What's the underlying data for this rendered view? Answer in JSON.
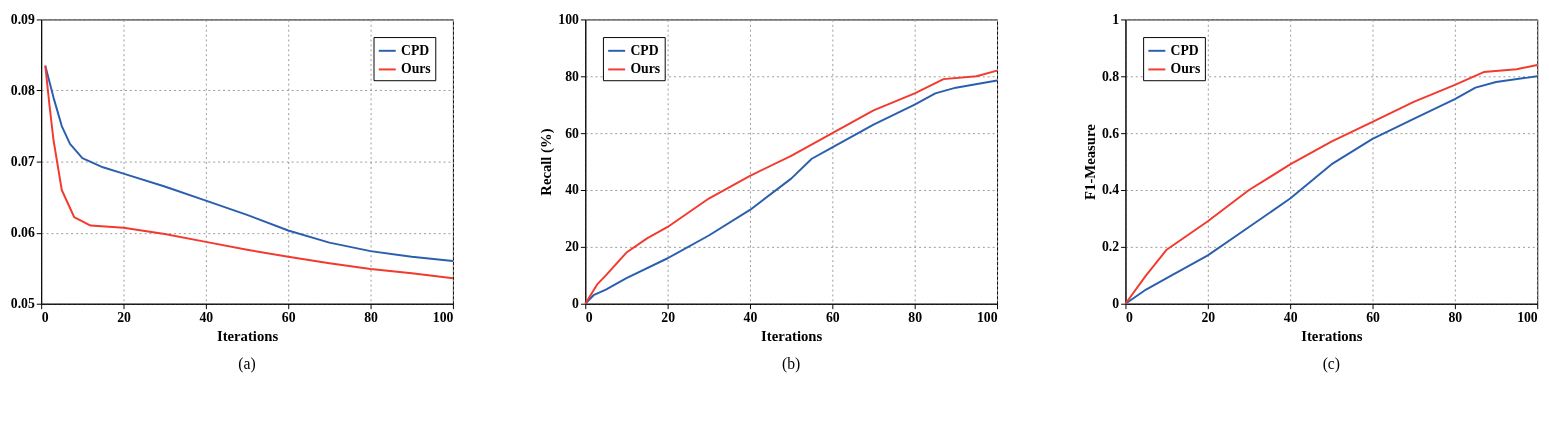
{
  "chart_data": [
    {
      "type": "line",
      "xlabel": "Iterations",
      "xlim": [
        0,
        100
      ],
      "xticks": [
        0,
        20,
        40,
        60,
        80,
        100
      ],
      "ylim": [
        0.05,
        0.09
      ],
      "yticks": [
        0.05,
        0.06,
        0.07,
        0.08,
        0.09
      ],
      "grid": true,
      "legend": "top right",
      "line_style": "solid",
      "annotations": [
        "(a)"
      ],
      "series": [
        {
          "name": "CPD",
          "color": "#2b5fae",
          "x": [
            1,
            3,
            5,
            7,
            10,
            15,
            20,
            30,
            40,
            50,
            60,
            70,
            80,
            90,
            100
          ],
          "values": [
            0.0835,
            0.079,
            0.075,
            0.0725,
            0.0705,
            0.0692,
            0.0683,
            0.0665,
            0.0645,
            0.0625,
            0.0603,
            0.0586,
            0.0574,
            0.0566,
            0.056
          ]
        },
        {
          "name": "Ours",
          "color": "#f23a2e",
          "x": [
            1,
            2,
            3,
            5,
            8,
            12,
            20,
            30,
            40,
            50,
            60,
            70,
            80,
            90,
            100
          ],
          "values": [
            0.0835,
            0.078,
            0.073,
            0.066,
            0.0622,
            0.061,
            0.0607,
            0.0598,
            0.0587,
            0.0576,
            0.0566,
            0.0557,
            0.0549,
            0.0543,
            0.0536
          ]
        }
      ]
    },
    {
      "type": "line",
      "xlabel": "Iterations",
      "ylabel": "Recall (%)",
      "xlim": [
        0,
        100
      ],
      "xticks": [
        0,
        20,
        40,
        60,
        80,
        100
      ],
      "ylim": [
        0,
        100
      ],
      "yticks": [
        0,
        20,
        40,
        60,
        80,
        100
      ],
      "grid": true,
      "legend": "top left",
      "line_style": "solid",
      "annotations": [
        "(b)"
      ],
      "series": [
        {
          "name": "CPD",
          "color": "#2b5fae",
          "x": [
            0,
            2,
            5,
            10,
            20,
            30,
            40,
            50,
            55,
            60,
            70,
            80,
            85,
            90,
            100
          ],
          "values": [
            0,
            3,
            5,
            9,
            16,
            24,
            33,
            44,
            51,
            55,
            63,
            70,
            74,
            76,
            78.5
          ]
        },
        {
          "name": "Ours",
          "color": "#f23a2e",
          "x": [
            0,
            3,
            5,
            10,
            15,
            20,
            30,
            40,
            50,
            60,
            70,
            80,
            87,
            95,
            100
          ],
          "values": [
            0,
            7,
            10,
            18,
            23,
            27,
            37,
            45,
            52,
            60,
            68,
            74,
            79,
            80,
            82
          ]
        }
      ]
    },
    {
      "type": "line",
      "xlabel": "Iterations",
      "ylabel": "F1-Measure",
      "xlim": [
        0,
        100
      ],
      "xticks": [
        0,
        20,
        40,
        60,
        80,
        100
      ],
      "ylim": [
        0,
        1
      ],
      "yticks": [
        0,
        0.2,
        0.4,
        0.6,
        0.8,
        1
      ],
      "grid": true,
      "legend": "top left",
      "line_style": "solid",
      "annotations": [
        "(c)"
      ],
      "series": [
        {
          "name": "CPD",
          "color": "#2b5fae",
          "x": [
            0,
            5,
            10,
            20,
            30,
            40,
            50,
            60,
            70,
            80,
            85,
            90,
            100
          ],
          "values": [
            0,
            0.05,
            0.09,
            0.17,
            0.27,
            0.37,
            0.49,
            0.58,
            0.65,
            0.72,
            0.76,
            0.78,
            0.8
          ]
        },
        {
          "name": "Ours",
          "color": "#f23a2e",
          "x": [
            0,
            5,
            10,
            20,
            30,
            40,
            50,
            60,
            70,
            80,
            87,
            95,
            100
          ],
          "values": [
            0,
            0.1,
            0.19,
            0.29,
            0.4,
            0.49,
            0.57,
            0.64,
            0.71,
            0.77,
            0.815,
            0.825,
            0.84
          ]
        }
      ]
    }
  ]
}
